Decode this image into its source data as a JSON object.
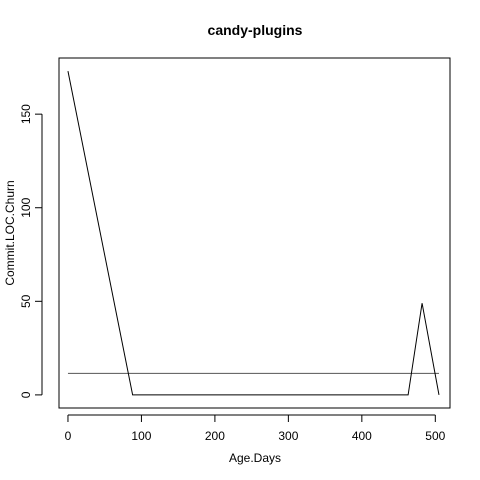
{
  "chart_data": {
    "type": "line",
    "title": "candy-plugins",
    "xlabel": "Age.Days",
    "ylabel": "Commit.LOC.Churn",
    "xlim": [
      -12.2,
      520
    ],
    "ylim": [
      -7,
      180
    ],
    "xticks": [
      0,
      100,
      200,
      300,
      400,
      500
    ],
    "yticks": [
      0,
      50,
      100,
      150
    ],
    "grid": false,
    "series": [
      {
        "x": [
          0,
          88,
          90,
          463,
          482,
          505
        ],
        "y": [
          173,
          0,
          0,
          0,
          49,
          0
        ],
        "color": "#000000"
      }
    ],
    "reference_lines": [
      {
        "orientation": "horizontal",
        "y": 11.5,
        "x_from": 0,
        "x_to": 505,
        "color": "#555555"
      }
    ]
  }
}
